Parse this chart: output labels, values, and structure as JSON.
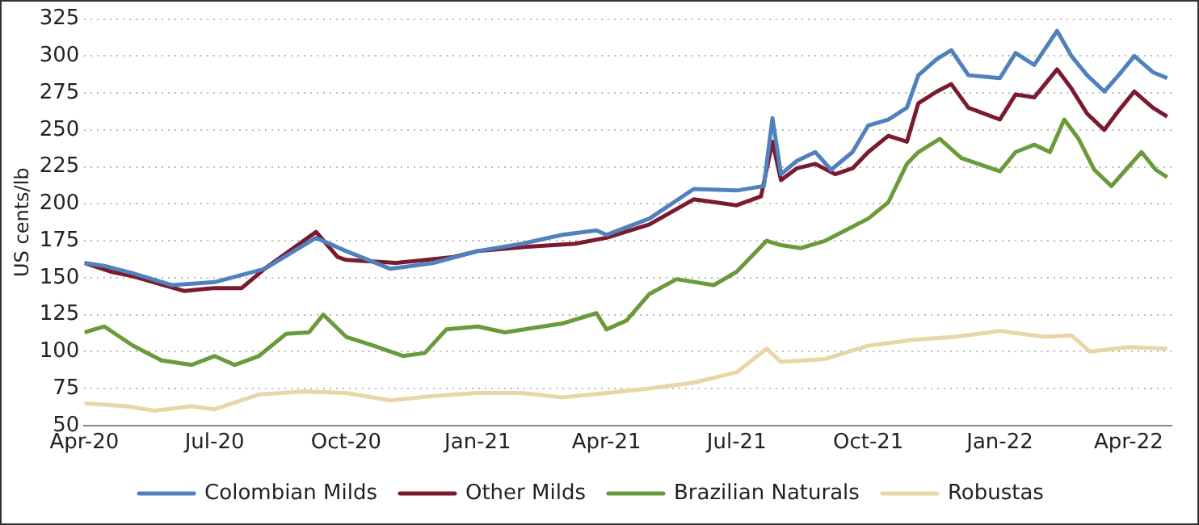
{
  "chart_data": {
    "type": "line",
    "ylabel": "US cents/lb",
    "xlim": [
      "2020-04-01",
      "2022-05-01"
    ],
    "xticks": [
      {
        "value": "2020-04-01",
        "label": "Apr-20"
      },
      {
        "value": "2020-07-01",
        "label": "Jul-20"
      },
      {
        "value": "2020-10-01",
        "label": "Oct-20"
      },
      {
        "value": "2021-01-01",
        "label": "Jan-21"
      },
      {
        "value": "2021-04-01",
        "label": "Apr-21"
      },
      {
        "value": "2021-07-01",
        "label": "Jul-21"
      },
      {
        "value": "2021-10-01",
        "label": "Oct-21"
      },
      {
        "value": "2022-01-01",
        "label": "Jan-22"
      },
      {
        "value": "2022-04-01",
        "label": "Apr-22"
      }
    ],
    "ylim": [
      50,
      325
    ],
    "yticks": [
      50,
      75,
      100,
      125,
      150,
      175,
      200,
      225,
      250,
      275,
      300,
      325
    ],
    "grid": "y",
    "legend": "bottom",
    "marker": "none",
    "line_style": "solid",
    "series": [
      {
        "name": "Colombian Milds",
        "color": "#4f81bd",
        "x": [
          "2020-04-01",
          "2020-04-15",
          "2020-05-05",
          "2020-06-01",
          "2020-07-01",
          "2020-08-05",
          "2020-09-10",
          "2020-10-01",
          "2020-11-01",
          "2020-12-01",
          "2021-01-01",
          "2021-02-01",
          "2021-03-01",
          "2021-03-25",
          "2021-04-01",
          "2021-05-01",
          "2021-06-01",
          "2021-07-01",
          "2021-07-20",
          "2021-07-26",
          "2021-08-01",
          "2021-08-12",
          "2021-08-25",
          "2021-09-05",
          "2021-09-20",
          "2021-10-01",
          "2021-10-15",
          "2021-10-28",
          "2021-11-05",
          "2021-11-18",
          "2021-11-28",
          "2021-12-10",
          "2022-01-01",
          "2022-01-12",
          "2022-01-25",
          "2022-02-10",
          "2022-02-20",
          "2022-03-03",
          "2022-03-15",
          "2022-03-25",
          "2022-04-05",
          "2022-04-18",
          "2022-04-28"
        ],
        "values": [
          160,
          158,
          153,
          145,
          147,
          156,
          177,
          168,
          156,
          160,
          168,
          173,
          179,
          182,
          179,
          190,
          210,
          209,
          212,
          258,
          220,
          229,
          235,
          223,
          235,
          253,
          257,
          265,
          287,
          298,
          304,
          287,
          285,
          302,
          294,
          317,
          300,
          287,
          276,
          287,
          300,
          289,
          285
        ]
      },
      {
        "name": "Other Milds",
        "color": "#7b1a2e",
        "x": [
          "2020-04-01",
          "2020-04-20",
          "2020-05-05",
          "2020-06-10",
          "2020-07-01",
          "2020-07-20",
          "2020-08-05",
          "2020-09-10",
          "2020-09-25",
          "2020-10-01",
          "2020-11-05",
          "2020-12-15",
          "2021-01-01",
          "2021-02-05",
          "2021-03-10",
          "2021-04-01",
          "2021-05-01",
          "2021-06-01",
          "2021-07-01",
          "2021-07-18",
          "2021-07-26",
          "2021-08-01",
          "2021-08-12",
          "2021-08-25",
          "2021-09-08",
          "2021-09-20",
          "2021-10-01",
          "2021-10-15",
          "2021-10-28",
          "2021-11-05",
          "2021-11-18",
          "2021-11-28",
          "2021-12-10",
          "2022-01-01",
          "2022-01-12",
          "2022-01-25",
          "2022-02-10",
          "2022-02-20",
          "2022-03-03",
          "2022-03-15",
          "2022-03-25",
          "2022-04-05",
          "2022-04-18",
          "2022-04-28"
        ],
        "values": [
          160,
          154,
          151,
          141,
          143,
          143,
          156,
          181,
          164,
          162,
          160,
          164,
          168,
          171,
          173,
          177,
          186,
          203,
          199,
          205,
          242,
          216,
          224,
          227,
          220,
          224,
          235,
          246,
          242,
          268,
          276,
          281,
          265,
          257,
          274,
          272,
          291,
          278,
          261,
          250,
          263,
          276,
          265,
          259
        ]
      },
      {
        "name": "Brazilian Naturals",
        "color": "#6a9a3a",
        "x": [
          "2020-04-01",
          "2020-04-15",
          "2020-05-05",
          "2020-05-25",
          "2020-06-15",
          "2020-07-01",
          "2020-07-15",
          "2020-08-01",
          "2020-08-20",
          "2020-09-05",
          "2020-09-15",
          "2020-10-01",
          "2020-10-20",
          "2020-11-10",
          "2020-11-25",
          "2020-12-10",
          "2021-01-01",
          "2021-01-20",
          "2021-03-01",
          "2021-03-25",
          "2021-04-01",
          "2021-04-15",
          "2021-05-01",
          "2021-05-20",
          "2021-06-15",
          "2021-07-01",
          "2021-07-22",
          "2021-08-01",
          "2021-08-15",
          "2021-09-01",
          "2021-09-15",
          "2021-10-01",
          "2021-10-15",
          "2021-10-28",
          "2021-11-05",
          "2021-11-20",
          "2021-12-05",
          "2022-01-01",
          "2022-01-12",
          "2022-01-25",
          "2022-02-05",
          "2022-02-15",
          "2022-02-25",
          "2022-03-08",
          "2022-03-20",
          "2022-03-30",
          "2022-04-10",
          "2022-04-20",
          "2022-04-28"
        ],
        "values": [
          113,
          117,
          104,
          94,
          91,
          97,
          91,
          97,
          112,
          113,
          125,
          110,
          104,
          97,
          99,
          115,
          117,
          113,
          119,
          126,
          115,
          121,
          139,
          149,
          145,
          154,
          175,
          172,
          170,
          175,
          182,
          190,
          201,
          227,
          235,
          244,
          231,
          222,
          235,
          240,
          235,
          257,
          244,
          223,
          212,
          223,
          235,
          223,
          218
        ]
      },
      {
        "name": "Robustas",
        "color": "#e8d5a8",
        "x": [
          "2020-04-01",
          "2020-05-01",
          "2020-05-20",
          "2020-06-15",
          "2020-07-01",
          "2020-08-01",
          "2020-09-01",
          "2020-10-01",
          "2020-11-01",
          "2020-12-01",
          "2021-01-01",
          "2021-02-01",
          "2021-03-01",
          "2021-04-01",
          "2021-05-01",
          "2021-06-01",
          "2021-07-01",
          "2021-07-22",
          "2021-08-01",
          "2021-09-01",
          "2021-10-01",
          "2021-11-01",
          "2021-12-01",
          "2022-01-01",
          "2022-02-01",
          "2022-02-20",
          "2022-03-05",
          "2022-04-01",
          "2022-04-28"
        ],
        "values": [
          65,
          63,
          60,
          63,
          61,
          71,
          73,
          72,
          67,
          70,
          72,
          72,
          69,
          72,
          75,
          79,
          86,
          102,
          93,
          95,
          104,
          108,
          110,
          114,
          110,
          111,
          100,
          103,
          102
        ]
      }
    ]
  }
}
